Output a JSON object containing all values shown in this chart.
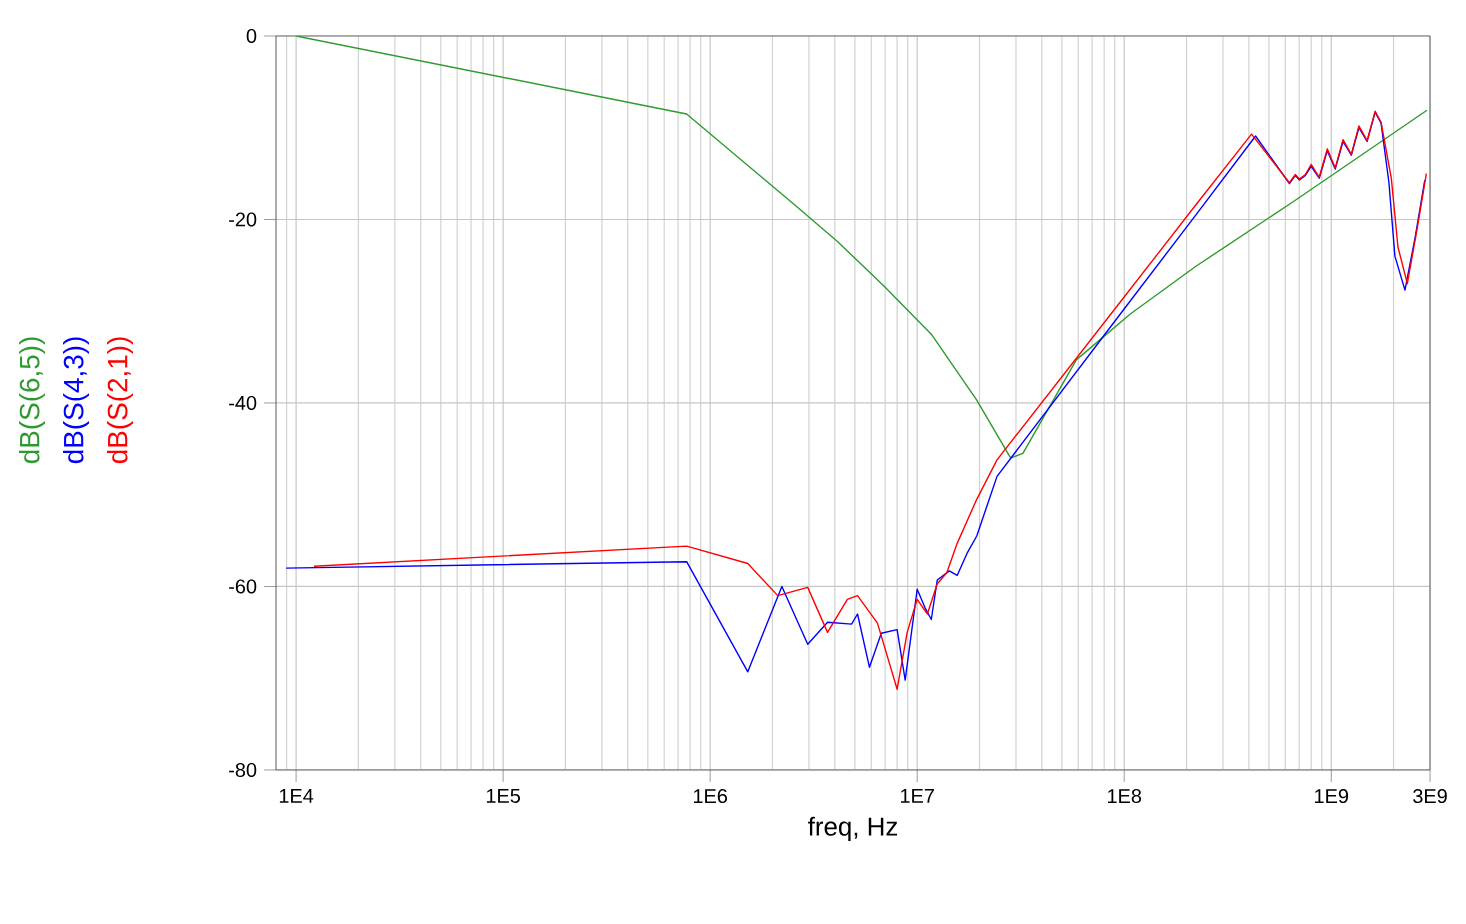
{
  "chart_data": {
    "type": "line",
    "xlabel": "freq, Hz",
    "log": "x",
    "grid": true,
    "legend": "left",
    "marker": "none",
    "line_style": "solid",
    "xlim": [
      8000,
      3000000000
    ],
    "ylim": [
      -80,
      0
    ],
    "xticks": [
      {
        "value": 10000,
        "label": "1E4"
      },
      {
        "value": 100000,
        "label": "1E5"
      },
      {
        "value": 1000000,
        "label": "1E6"
      },
      {
        "value": 10000000,
        "label": "1E7"
      },
      {
        "value": 100000000,
        "label": "1E8"
      },
      {
        "value": 1000000000,
        "label": "1E9"
      },
      {
        "value": 3000000000,
        "label": "3E9"
      }
    ],
    "yticks": [
      -80,
      -60,
      -40,
      -20,
      0
    ],
    "series": [
      {
        "name": "dB(S(6,5))",
        "color": "#2e9a2e",
        "x": [
          10000,
          770000,
          2650000,
          4120000,
          6870000,
          11700000,
          19400000,
          28300000,
          32400000,
          58700000,
          107000000,
          222000000,
          671000000,
          2900000000
        ],
        "values": [
          0,
          -8.5,
          -18.7,
          -22.4,
          -27.2,
          -32.5,
          -39.7,
          -46.0,
          -45.5,
          -35.3,
          -30.3,
          -25.1,
          -17.9,
          -8.1
        ]
      },
      {
        "name": "dB(S(4,3))",
        "color": "#0000ff",
        "x": [
          8950,
          770000,
          1520000,
          2220000,
          2960000,
          3690000,
          4820000,
          5150000,
          5880000,
          6710000,
          8000000,
          8750000,
          10000000,
          10900000,
          11700000,
          12500000,
          14300000,
          15600000,
          17400000,
          19400000,
          24300000,
          98000000,
          222000000,
          431000000,
          628000000,
          671000000,
          702000000,
          750000000,
          800000000,
          875000000,
          957000000,
          1045000000,
          1140000000,
          1250000000,
          1360000000,
          1490000000,
          1630000000,
          1740000000,
          1900000000,
          2030000000,
          2270000000,
          2540000000,
          2830000000
        ],
        "values": [
          -58,
          -57.3,
          -69.3,
          -60,
          -66.3,
          -63.9,
          -64.1,
          -63,
          -68.8,
          -65.1,
          -64.7,
          -70.2,
          -60.3,
          -62.3,
          -63.6,
          -59.3,
          -58.3,
          -58.8,
          -56.4,
          -54.5,
          -48,
          -30,
          -19.5,
          -10.9,
          -16.1,
          -15.2,
          -15.7,
          -15.2,
          -14.2,
          -15.5,
          -12.5,
          -14.5,
          -11.5,
          -13,
          -10,
          -11.5,
          -8.3,
          -9.5,
          -16,
          -24,
          -27.7,
          -22,
          -15.7
        ]
      },
      {
        "name": "dB(S(2,1))",
        "color": "#ff0000",
        "x": [
          12200,
          770000,
          1520000,
          2120000,
          2960000,
          3690000,
          4600000,
          5150000,
          6430000,
          8000000,
          8950000,
          10000000,
          11200000,
          12500000,
          13900000,
          15600000,
          19400000,
          24300000,
          98000000,
          222000000,
          412000000,
          628000000,
          671000000,
          702000000,
          750000000,
          800000000,
          875000000,
          957000000,
          1045000000,
          1140000000,
          1250000000,
          1360000000,
          1490000000,
          1630000000,
          1740000000,
          1950000000,
          2100000000,
          2330000000,
          2600000000,
          2880000000
        ],
        "values": [
          -57.8,
          -55.6,
          -57.5,
          -61,
          -60.1,
          -65,
          -61.4,
          -61,
          -64,
          -71.2,
          -65,
          -61.4,
          -63,
          -59.7,
          -58.5,
          -55.3,
          -50.5,
          -46.2,
          -28.7,
          -18.4,
          -10.7,
          -16,
          -15.1,
          -15.6,
          -15.1,
          -14,
          -15.4,
          -12.3,
          -14.4,
          -11.3,
          -12.9,
          -9.8,
          -11.4,
          -8.2,
          -9.4,
          -15.5,
          -23,
          -27,
          -21,
          -15
        ]
      }
    ]
  }
}
